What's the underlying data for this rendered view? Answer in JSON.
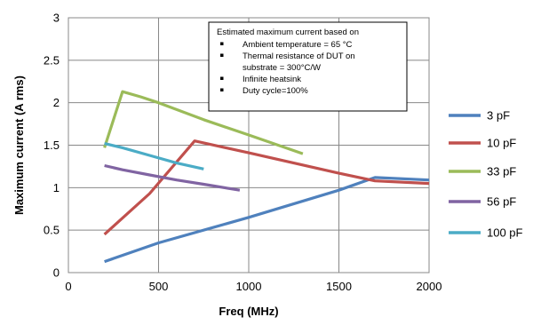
{
  "chart_data": {
    "type": "line",
    "xlabel": "Freq (MHz)",
    "ylabel": "Maximum current (A rms)",
    "xlim": [
      0,
      2000
    ],
    "ylim": [
      0,
      3
    ],
    "x_ticks": [
      "0",
      "500",
      "1000",
      "1500",
      "2000"
    ],
    "y_ticks": [
      "0",
      "0.5",
      "1",
      "1.5",
      "2",
      "2.5",
      "3"
    ],
    "grid": true,
    "legend_position": "right",
    "series": [
      {
        "name": "3 pF",
        "color": "#4f81bd",
        "x": [
          200,
          500,
          1000,
          1500,
          1700,
          2000
        ],
        "y": [
          0.13,
          0.35,
          0.65,
          0.97,
          1.12,
          1.09
        ]
      },
      {
        "name": "10 pF",
        "color": "#c0504d",
        "x": [
          200,
          450,
          700,
          1000,
          1500,
          1700,
          2000
        ],
        "y": [
          0.45,
          0.93,
          1.55,
          1.41,
          1.17,
          1.08,
          1.05
        ]
      },
      {
        "name": "33 pF",
        "color": "#9bbb59",
        "x": [
          200,
          300,
          400,
          500,
          750,
          1000,
          1300
        ],
        "y": [
          1.47,
          2.13,
          2.07,
          2.0,
          1.8,
          1.62,
          1.4
        ]
      },
      {
        "name": "56 pF",
        "color": "#8064a2",
        "x": [
          200,
          300,
          450,
          600,
          750,
          950
        ],
        "y": [
          1.26,
          1.21,
          1.15,
          1.09,
          1.04,
          0.97
        ]
      },
      {
        "name": "100 pF",
        "color": "#4bacc6",
        "x": [
          200,
          300,
          450,
          600,
          750
        ],
        "y": [
          1.52,
          1.47,
          1.38,
          1.29,
          1.22
        ]
      }
    ],
    "annotation": {
      "title": "Estimated maximum current based on",
      "bullets": [
        {
          "lines": [
            "Ambient temperature = 65 °C"
          ]
        },
        {
          "lines": [
            "Thermal resistance of  DUT on",
            "substrate  = 300°C/W"
          ]
        },
        {
          "lines": [
            "Infinite heatsink"
          ]
        },
        {
          "lines": [
            "Duty cycle=100%"
          ]
        }
      ]
    }
  }
}
